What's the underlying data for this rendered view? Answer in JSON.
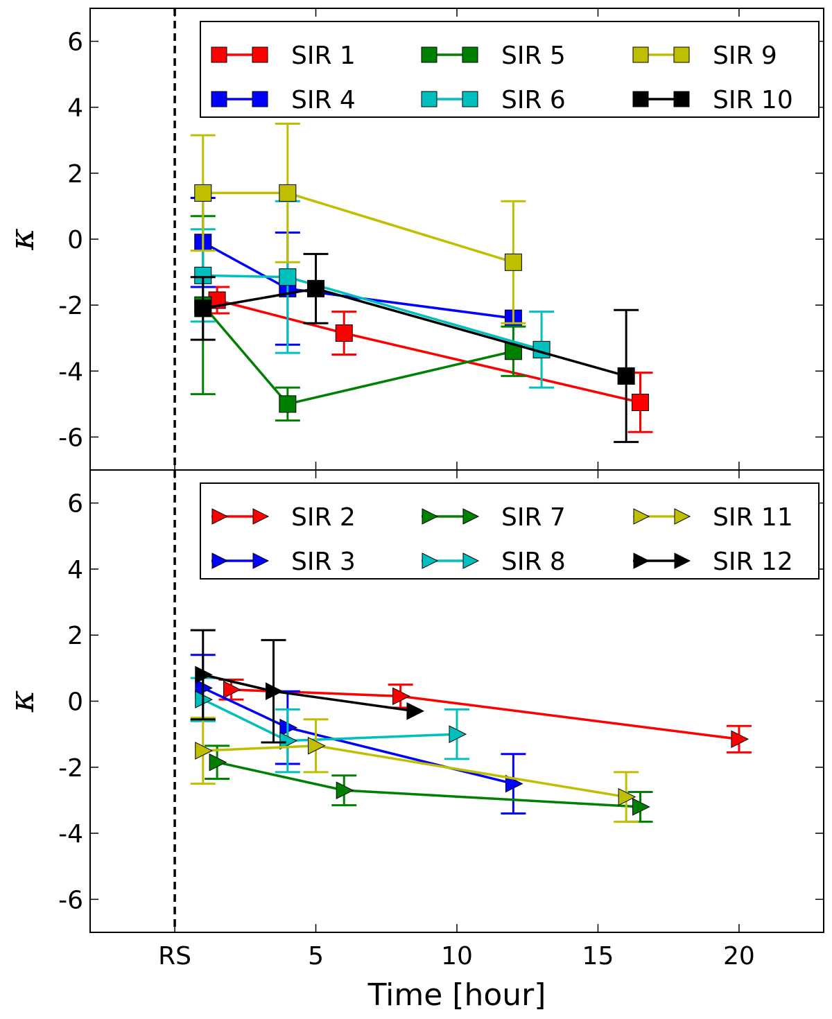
{
  "chart_data": [
    {
      "type": "line",
      "panel": "top",
      "marker": "square",
      "xlabel": "",
      "ylabel": "κ",
      "xlim": [
        -3,
        23
      ],
      "ylim": [
        -7,
        7
      ],
      "xticks": [
        0,
        5,
        10,
        15,
        20
      ],
      "xtick_labels": [
        "RS",
        "5",
        "10",
        "15",
        "20"
      ],
      "yticks": [
        -6,
        -4,
        -2,
        0,
        2,
        4,
        6
      ],
      "ytick_labels": [
        "-6",
        "-4",
        "-2",
        "0",
        "2",
        "4",
        "6"
      ],
      "reference_line": {
        "x": 0,
        "label": "RS"
      },
      "legend": {
        "location": "top-right",
        "columns": 3
      },
      "series": [
        {
          "name": "SIR 1",
          "color": "#ff0000",
          "x": [
            1.5,
            6,
            16.5
          ],
          "y": [
            -1.85,
            -2.85,
            -4.95
          ],
          "err": [
            0.4,
            0.65,
            0.9
          ]
        },
        {
          "name": "SIR 4",
          "color": "#0000ff",
          "x": [
            1,
            4,
            12
          ],
          "y": [
            -0.1,
            -1.5,
            -2.4
          ],
          "err": [
            1.35,
            1.7,
            0.0
          ]
        },
        {
          "name": "SIR 5",
          "color": "#008000",
          "x": [
            1,
            4,
            12
          ],
          "y": [
            -2.0,
            -5.0,
            -3.4
          ],
          "err": [
            2.7,
            0.5,
            0.75
          ]
        },
        {
          "name": "SIR 6",
          "color": "#00bfbf",
          "x": [
            1,
            4,
            13
          ],
          "y": [
            -1.1,
            -1.15,
            -3.35
          ],
          "err": [
            1.4,
            2.3,
            1.15
          ]
        },
        {
          "name": "SIR 9",
          "color": "#bfbf00",
          "x": [
            1,
            4,
            12
          ],
          "y": [
            1.4,
            1.4,
            -0.7
          ],
          "err": [
            1.75,
            2.1,
            1.85
          ]
        },
        {
          "name": "SIR 10",
          "color": "#000000",
          "x": [
            1,
            5,
            16
          ],
          "y": [
            -2.1,
            -1.5,
            -4.15
          ],
          "err": [
            0.95,
            1.05,
            2.0
          ]
        }
      ]
    },
    {
      "type": "line",
      "panel": "bottom",
      "marker": "triangle-right",
      "xlabel": "Time [hour]",
      "ylabel": "κ",
      "xlim": [
        -3,
        23
      ],
      "ylim": [
        -7,
        7
      ],
      "xticks": [
        0,
        5,
        10,
        15,
        20
      ],
      "xtick_labels": [
        "RS",
        "5",
        "10",
        "15",
        "20"
      ],
      "yticks": [
        -6,
        -4,
        -2,
        0,
        2,
        4,
        6
      ],
      "ytick_labels": [
        "-6",
        "-4",
        "-2",
        "0",
        "2",
        "4",
        "6"
      ],
      "reference_line": {
        "x": 0,
        "label": "RS"
      },
      "legend": {
        "location": "top-right",
        "columns": 3
      },
      "series": [
        {
          "name": "SIR 2",
          "color": "#ff0000",
          "x": [
            2,
            8,
            20
          ],
          "y": [
            0.35,
            0.15,
            -1.15
          ],
          "err": [
            0.3,
            0.35,
            0.4
          ]
        },
        {
          "name": "SIR 3",
          "color": "#0000ff",
          "x": [
            1,
            4,
            12
          ],
          "y": [
            0.4,
            -0.8,
            -2.5
          ],
          "err": [
            1.0,
            1.1,
            0.9
          ]
        },
        {
          "name": "SIR 7",
          "color": "#008000",
          "x": [
            1.5,
            6,
            16.5
          ],
          "y": [
            -1.85,
            -2.7,
            -3.2
          ],
          "err": [
            0.5,
            0.45,
            0.45
          ]
        },
        {
          "name": "SIR 8",
          "color": "#00bfbf",
          "x": [
            1,
            4,
            10
          ],
          "y": [
            0.05,
            -1.2,
            -1.0
          ],
          "err": [
            0.65,
            0.95,
            0.75
          ]
        },
        {
          "name": "SIR 11",
          "color": "#bfbf00",
          "x": [
            1,
            5,
            16
          ],
          "y": [
            -1.5,
            -1.35,
            -2.9
          ],
          "err": [
            1.0,
            0.8,
            0.75
          ]
        },
        {
          "name": "SIR 12",
          "color": "#000000",
          "x": [
            1,
            3.5,
            8.5
          ],
          "y": [
            0.8,
            0.3,
            -0.3
          ],
          "err": [
            1.35,
            1.55,
            0.0
          ]
        }
      ]
    }
  ]
}
